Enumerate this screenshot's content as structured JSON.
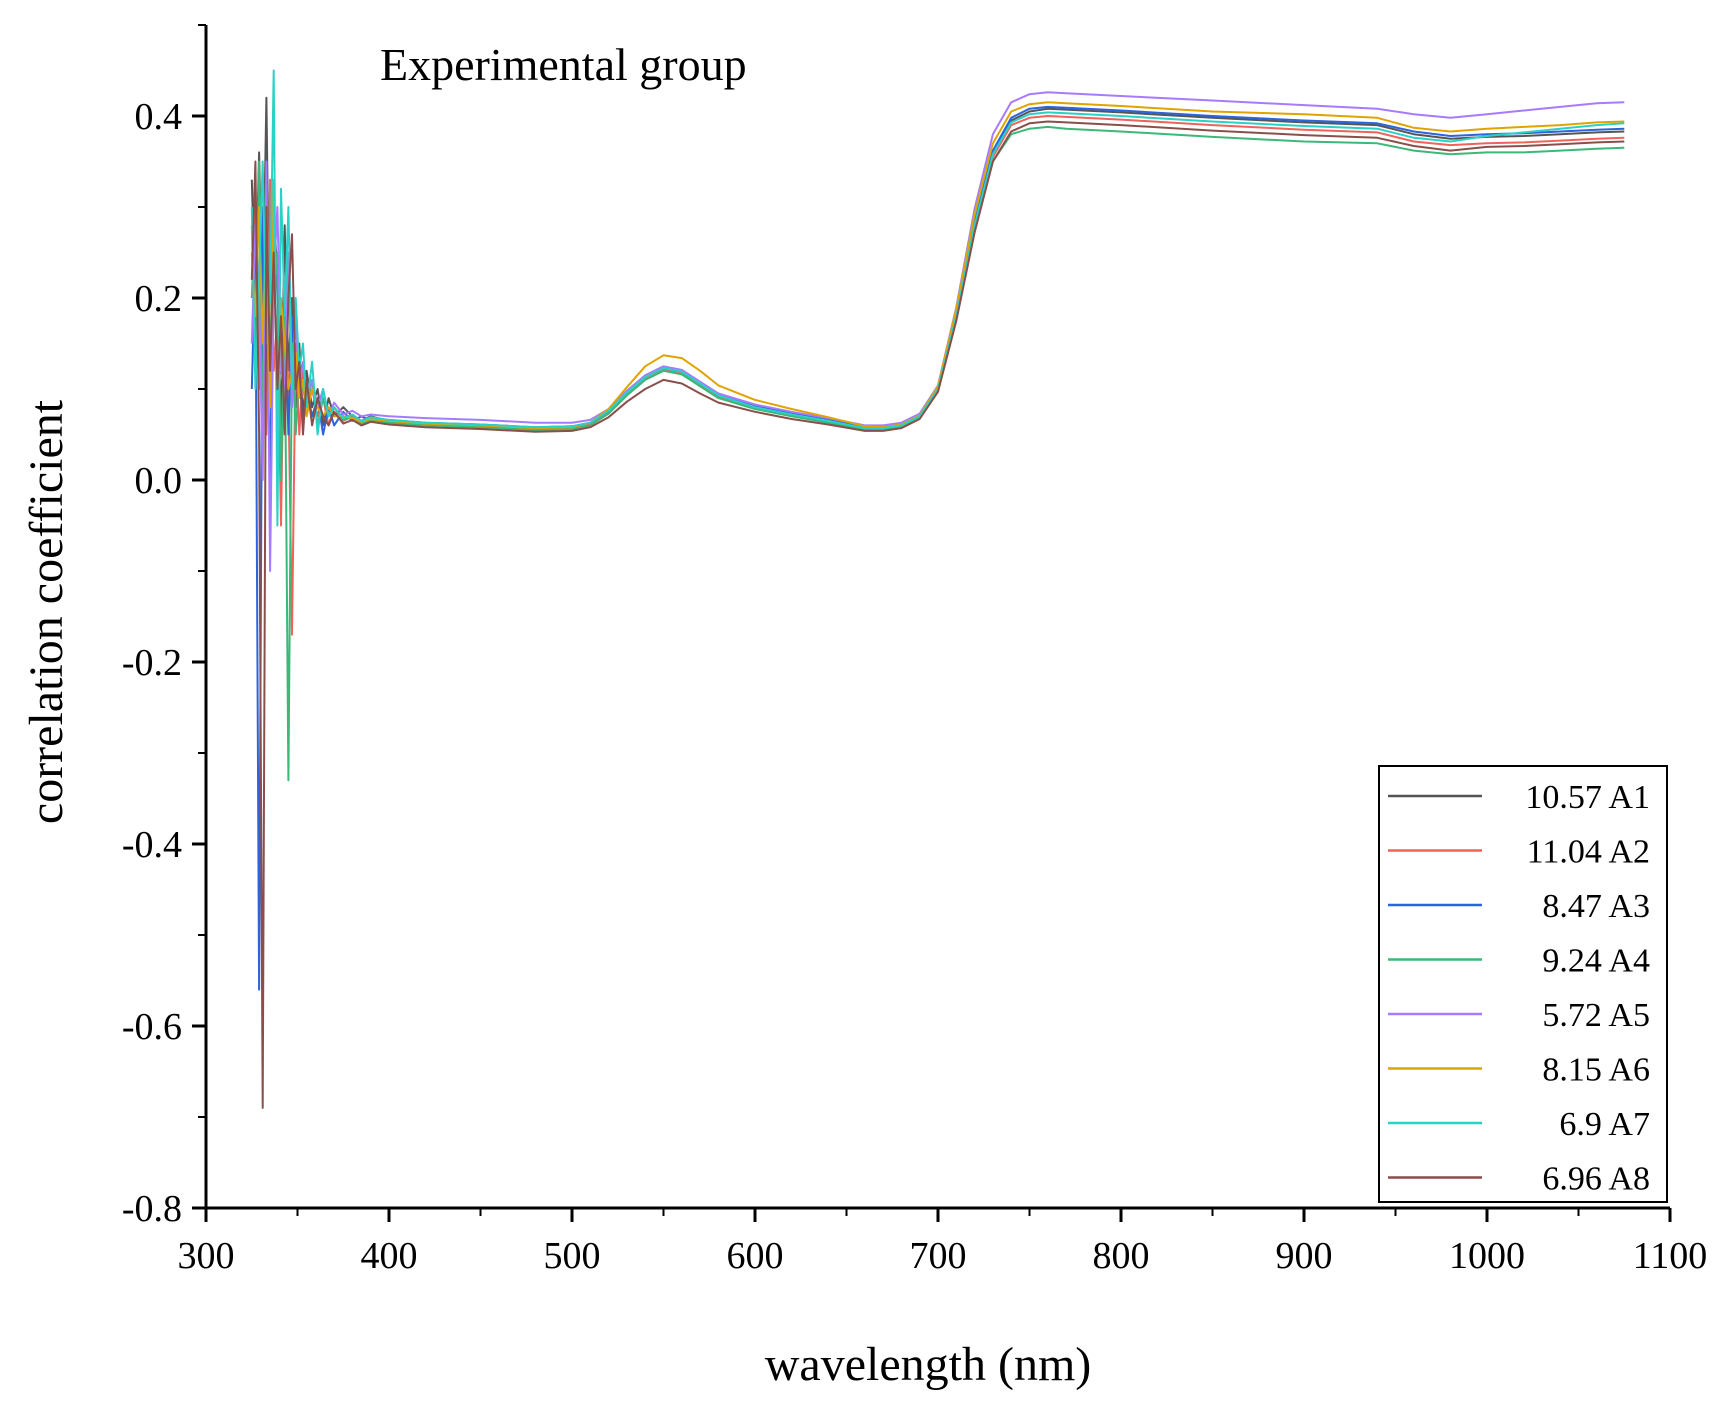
{
  "chart_data": {
    "type": "line",
    "title": "Experimental group",
    "xlabel": "wavelength (nm)",
    "ylabel": "correlation coefficient",
    "xlim": [
      300,
      1100
    ],
    "ylim": [
      -0.8,
      0.5
    ],
    "x_ticks": [
      300,
      400,
      500,
      600,
      700,
      800,
      900,
      1000,
      1100
    ],
    "x_tick_labels": [
      "300",
      "400",
      "500",
      "600",
      "700",
      "800",
      "900",
      "1000",
      "1100"
    ],
    "y_ticks": [
      -0.8,
      -0.6,
      -0.4,
      -0.2,
      0.0,
      0.2,
      0.4
    ],
    "y_tick_labels": [
      "-0.8",
      "-0.6",
      "-0.4",
      "-0.2",
      "0.0",
      "0.2",
      "0.4"
    ],
    "grid": false,
    "legend_position": "bottom-right",
    "x": [
      325,
      327,
      329,
      331,
      333,
      335,
      337,
      339,
      341,
      343,
      345,
      347,
      349,
      351,
      353,
      355,
      358,
      361,
      364,
      367,
      370,
      375,
      380,
      385,
      390,
      400,
      420,
      450,
      480,
      500,
      510,
      520,
      530,
      540,
      550,
      560,
      570,
      580,
      600,
      620,
      640,
      660,
      670,
      680,
      690,
      700,
      710,
      720,
      730,
      740,
      750,
      760,
      770,
      800,
      850,
      900,
      940,
      960,
      980,
      1000,
      1020,
      1040,
      1060,
      1075
    ],
    "series": [
      {
        "name": "10.57 A1",
        "color": "#555555",
        "values": [
          0.33,
          0.19,
          0.36,
          0.18,
          0.42,
          0.1,
          0.3,
          0.22,
          0.05,
          0.28,
          0.12,
          0.2,
          0.08,
          0.15,
          0.07,
          0.12,
          0.08,
          0.1,
          0.06,
          0.09,
          0.07,
          0.08,
          0.07,
          0.065,
          0.07,
          0.065,
          0.062,
          0.06,
          0.057,
          0.058,
          0.062,
          0.075,
          0.095,
          0.112,
          0.122,
          0.118,
          0.105,
          0.092,
          0.08,
          0.072,
          0.065,
          0.057,
          0.057,
          0.06,
          0.07,
          0.1,
          0.18,
          0.28,
          0.36,
          0.395,
          0.405,
          0.408,
          0.407,
          0.404,
          0.398,
          0.393,
          0.39,
          0.38,
          0.375,
          0.377,
          0.378,
          0.38,
          0.382,
          0.383
        ]
      },
      {
        "name": "11.04 A2",
        "color": "#f0625a",
        "values": [
          0.2,
          0.3,
          0.1,
          0.25,
          0.05,
          0.33,
          0.12,
          0.18,
          -0.05,
          0.22,
          0.1,
          -0.17,
          0.15,
          0.05,
          0.12,
          0.08,
          0.1,
          0.07,
          0.09,
          0.06,
          0.08,
          0.065,
          0.07,
          0.06,
          0.068,
          0.064,
          0.061,
          0.059,
          0.056,
          0.057,
          0.061,
          0.074,
          0.094,
          0.111,
          0.121,
          0.117,
          0.104,
          0.091,
          0.079,
          0.071,
          0.064,
          0.056,
          0.056,
          0.059,
          0.069,
          0.099,
          0.178,
          0.278,
          0.355,
          0.39,
          0.398,
          0.4,
          0.399,
          0.396,
          0.39,
          0.385,
          0.382,
          0.372,
          0.368,
          0.37,
          0.371,
          0.373,
          0.375,
          0.376
        ]
      },
      {
        "name": "8.47 A3",
        "color": "#2b64dc",
        "values": [
          0.1,
          0.25,
          -0.56,
          0.3,
          0.2,
          0.0,
          0.28,
          0.1,
          0.15,
          0.2,
          0.05,
          0.18,
          0.1,
          0.12,
          0.06,
          0.1,
          0.07,
          0.09,
          0.05,
          0.08,
          0.06,
          0.075,
          0.065,
          0.07,
          0.065,
          0.066,
          0.063,
          0.061,
          0.058,
          0.059,
          0.063,
          0.076,
          0.097,
          0.114,
          0.124,
          0.12,
          0.107,
          0.094,
          0.081,
          0.073,
          0.066,
          0.058,
          0.058,
          0.061,
          0.071,
          0.101,
          0.182,
          0.283,
          0.362,
          0.398,
          0.408,
          0.41,
          0.409,
          0.406,
          0.4,
          0.395,
          0.392,
          0.383,
          0.378,
          0.38,
          0.381,
          0.383,
          0.385,
          0.386
        ]
      },
      {
        "name": "9.24 A4",
        "color": "#3cb878",
        "values": [
          0.28,
          0.12,
          0.35,
          0.05,
          0.3,
          0.15,
          0.2,
          0.25,
          0.0,
          0.18,
          -0.33,
          0.15,
          0.05,
          0.12,
          0.1,
          0.08,
          0.11,
          0.06,
          0.09,
          0.07,
          0.08,
          0.066,
          0.069,
          0.062,
          0.066,
          0.063,
          0.06,
          0.058,
          0.055,
          0.056,
          0.06,
          0.073,
          0.093,
          0.11,
          0.12,
          0.116,
          0.103,
          0.09,
          0.078,
          0.07,
          0.063,
          0.055,
          0.055,
          0.058,
          0.068,
          0.098,
          0.176,
          0.275,
          0.35,
          0.38,
          0.386,
          0.388,
          0.386,
          0.383,
          0.377,
          0.372,
          0.37,
          0.362,
          0.358,
          0.36,
          0.36,
          0.362,
          0.364,
          0.365
        ]
      },
      {
        "name": "5.72 A5",
        "color": "#a77bff",
        "values": [
          0.15,
          0.28,
          0.2,
          0.0,
          0.35,
          -0.1,
          0.22,
          0.3,
          0.12,
          0.1,
          0.25,
          0.08,
          0.18,
          0.1,
          0.13,
          0.09,
          0.11,
          0.08,
          0.1,
          0.07,
          0.085,
          0.072,
          0.076,
          0.07,
          0.072,
          0.07,
          0.068,
          0.066,
          0.063,
          0.063,
          0.066,
          0.078,
          0.098,
          0.115,
          0.125,
          0.121,
          0.108,
          0.095,
          0.083,
          0.075,
          0.068,
          0.06,
          0.06,
          0.063,
          0.073,
          0.104,
          0.19,
          0.298,
          0.38,
          0.415,
          0.424,
          0.426,
          0.425,
          0.422,
          0.417,
          0.412,
          0.408,
          0.402,
          0.398,
          0.402,
          0.406,
          0.41,
          0.414,
          0.415
        ]
      },
      {
        "name": "8.15 A6",
        "color": "#e0a400",
        "values": [
          0.25,
          0.18,
          0.3,
          0.15,
          0.28,
          0.08,
          0.33,
          0.05,
          0.2,
          0.15,
          0.1,
          0.12,
          0.14,
          0.09,
          0.11,
          0.07,
          0.1,
          0.08,
          0.07,
          0.08,
          0.07,
          0.07,
          0.068,
          0.064,
          0.067,
          0.065,
          0.062,
          0.06,
          0.057,
          0.058,
          0.063,
          0.078,
          0.102,
          0.125,
          0.137,
          0.134,
          0.12,
          0.104,
          0.088,
          0.078,
          0.069,
          0.059,
          0.058,
          0.061,
          0.071,
          0.103,
          0.188,
          0.292,
          0.37,
          0.405,
          0.413,
          0.415,
          0.414,
          0.411,
          0.405,
          0.402,
          0.398,
          0.387,
          0.383,
          0.386,
          0.388,
          0.39,
          0.393,
          0.394
        ]
      },
      {
        "name": "6.9 A7",
        "color": "#2ad1c6",
        "values": [
          0.3,
          0.1,
          0.22,
          0.35,
          0.15,
          0.2,
          0.45,
          -0.05,
          0.32,
          0.18,
          0.3,
          0.1,
          0.2,
          0.12,
          0.15,
          0.08,
          0.13,
          0.05,
          0.1,
          0.07,
          0.08,
          0.068,
          0.072,
          0.065,
          0.069,
          0.066,
          0.063,
          0.061,
          0.058,
          0.059,
          0.063,
          0.076,
          0.096,
          0.113,
          0.123,
          0.119,
          0.106,
          0.093,
          0.08,
          0.072,
          0.065,
          0.057,
          0.057,
          0.06,
          0.07,
          0.1,
          0.18,
          0.28,
          0.358,
          0.393,
          0.402,
          0.404,
          0.403,
          0.4,
          0.394,
          0.389,
          0.386,
          0.376,
          0.372,
          0.378,
          0.382,
          0.386,
          0.39,
          0.392
        ]
      },
      {
        "name": "6.96 A8",
        "color": "#8a4f4a",
        "values": [
          0.22,
          0.35,
          0.05,
          -0.69,
          0.3,
          0.12,
          0.25,
          0.1,
          0.18,
          0.05,
          0.2,
          0.27,
          0.1,
          0.13,
          0.05,
          0.11,
          0.06,
          0.09,
          0.07,
          0.06,
          0.075,
          0.062,
          0.066,
          0.06,
          0.064,
          0.061,
          0.058,
          0.056,
          0.053,
          0.054,
          0.058,
          0.069,
          0.086,
          0.1,
          0.11,
          0.106,
          0.095,
          0.085,
          0.075,
          0.067,
          0.061,
          0.054,
          0.054,
          0.057,
          0.067,
          0.097,
          0.175,
          0.272,
          0.35,
          0.383,
          0.392,
          0.394,
          0.393,
          0.39,
          0.384,
          0.379,
          0.376,
          0.367,
          0.362,
          0.366,
          0.367,
          0.369,
          0.371,
          0.372
        ]
      }
    ]
  }
}
